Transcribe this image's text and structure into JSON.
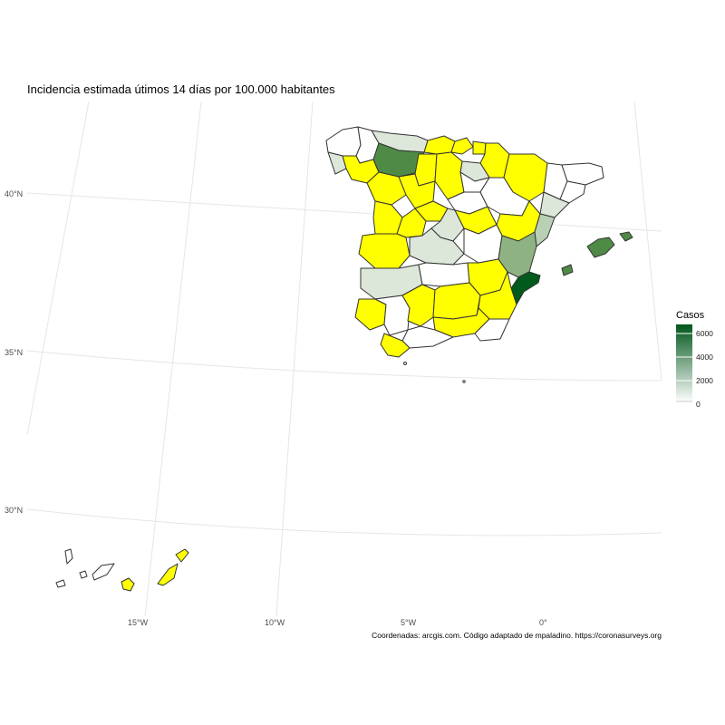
{
  "title": "Incidencia estimada útimos 14 días por 100.000 habitantes",
  "caption": "Coordenadas: arcgis.com. Código adaptado de mpaladino. https://coronasurveys.org",
  "legend": {
    "title": "Casos",
    "ticks": [
      "6000",
      "4000",
      "2000",
      "0"
    ],
    "colors": {
      "low": "#ffffff",
      "high": "#00561b"
    }
  },
  "axes": {
    "lat_labels": [
      "40°N",
      "35°N",
      "30°N"
    ],
    "lon_labels": [
      "15°W",
      "10°W",
      "5°W",
      "0°"
    ]
  },
  "colors": {
    "yellow": "#ffff00",
    "white": "#ffffff",
    "pale": "#dce6d9",
    "light": "#b9d0b4",
    "mid": "#8fb283",
    "medium": "#4f8a47",
    "dark": "#005a1c",
    "border": "#333333"
  }
}
